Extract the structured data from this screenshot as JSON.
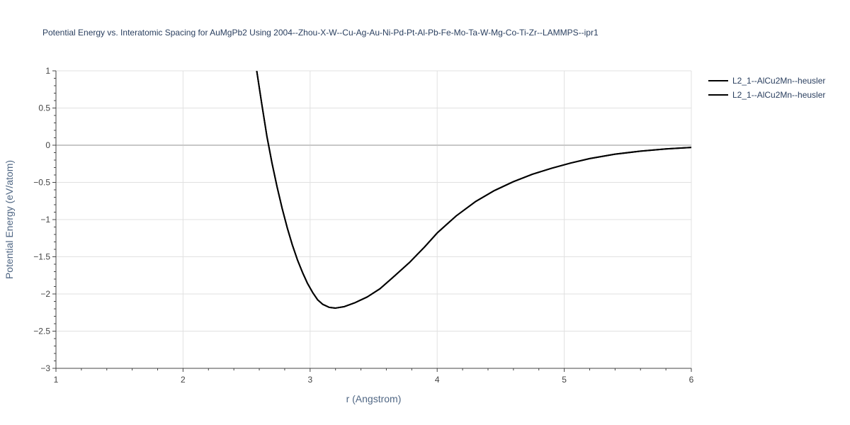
{
  "chart_data": {
    "type": "line",
    "title": "Potential Energy vs. Interatomic Spacing for AuMgPb2 Using 2004--Zhou-X-W--Cu-Ag-Au-Ni-Pd-Pt-Al-Pb-Fe-Mo-Ta-W-Mg-Co-Ti-Zr--LAMMPS--ipr1",
    "xlabel": "r (Angstrom)",
    "ylabel": "Potential Energy (eV/atom)",
    "xlim": [
      1,
      6
    ],
    "ylim": [
      -3,
      1
    ],
    "xticks": [
      "1",
      "2",
      "3",
      "4",
      "5",
      "6"
    ],
    "yticks": [
      "1",
      "0.5",
      "0",
      "−0.5",
      "−1",
      "−1.5",
      "−2",
      "−2.5",
      "−3"
    ],
    "grid": true,
    "legend_position": "top-right",
    "series": [
      {
        "name": "L2_1--AlCu2Mn--heusler",
        "color": "#000000",
        "x": [
          2.58,
          2.62,
          2.66,
          2.7,
          2.74,
          2.78,
          2.82,
          2.86,
          2.9,
          2.94,
          2.98,
          3.02,
          3.06,
          3.1,
          3.15,
          3.2,
          3.27,
          3.35,
          3.45,
          3.55,
          3.65,
          3.78,
          3.9,
          4.0,
          4.15,
          4.3,
          4.45,
          4.6,
          4.75,
          4.9,
          5.05,
          5.2,
          5.4,
          5.6,
          5.8,
          6.0
        ],
        "y": [
          1.0,
          0.55,
          0.12,
          -0.24,
          -0.56,
          -0.85,
          -1.11,
          -1.34,
          -1.54,
          -1.71,
          -1.86,
          -1.98,
          -2.08,
          -2.14,
          -2.18,
          -2.19,
          -2.17,
          -2.12,
          -2.04,
          -1.93,
          -1.78,
          -1.58,
          -1.37,
          -1.18,
          -0.95,
          -0.76,
          -0.61,
          -0.49,
          -0.39,
          -0.31,
          -0.24,
          -0.18,
          -0.12,
          -0.08,
          -0.05,
          -0.03
        ]
      },
      {
        "name": "L2_1--AlCu2Mn--heusler",
        "color": "#000000",
        "x": [
          2.58,
          2.62,
          2.66,
          2.7,
          2.74,
          2.78,
          2.82,
          2.86,
          2.9,
          2.94,
          2.98,
          3.02,
          3.06,
          3.1,
          3.15,
          3.2,
          3.27,
          3.35,
          3.45,
          3.55,
          3.65,
          3.78,
          3.9,
          4.0,
          4.15,
          4.3,
          4.45,
          4.6,
          4.75,
          4.9,
          5.05,
          5.2,
          5.4,
          5.6,
          5.8,
          6.0
        ],
        "y": [
          1.0,
          0.55,
          0.12,
          -0.24,
          -0.56,
          -0.85,
          -1.11,
          -1.34,
          -1.54,
          -1.71,
          -1.86,
          -1.98,
          -2.08,
          -2.14,
          -2.18,
          -2.19,
          -2.17,
          -2.12,
          -2.04,
          -1.93,
          -1.78,
          -1.58,
          -1.37,
          -1.18,
          -0.95,
          -0.76,
          -0.61,
          -0.49,
          -0.39,
          -0.31,
          -0.24,
          -0.18,
          -0.12,
          -0.08,
          -0.05,
          -0.03
        ]
      }
    ]
  }
}
